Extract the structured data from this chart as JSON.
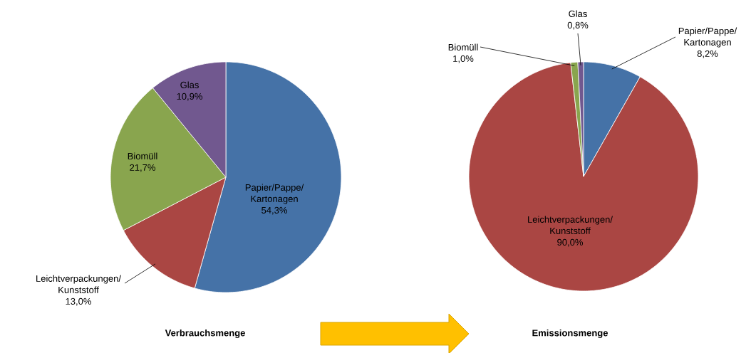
{
  "chart_data": [
    {
      "type": "pie",
      "title": "Verbrauchsmenge",
      "categories": [
        "Papier/Pappe/ Kartonagen",
        "Leichtverpackungen/ Kunststoff",
        "Biomüll",
        "Glas"
      ],
      "values": [
        54.3,
        13.0,
        21.7,
        10.9
      ],
      "value_labels": [
        "54,3%",
        "13,0%",
        "21,7%",
        "10,9%"
      ],
      "colors": [
        "#4572a7",
        "#aa4643",
        "#89a54e",
        "#71588f"
      ]
    },
    {
      "type": "pie",
      "title": "Emissionsmenge",
      "categories": [
        "Papier/Pappe/ Kartonagen",
        "Leichtverpackungen/ Kunststoff",
        "Biomüll",
        "Glas"
      ],
      "values": [
        8.2,
        90.0,
        1.0,
        0.8
      ],
      "value_labels": [
        "8,2%",
        "90,0%",
        "1,0%",
        "0,8%"
      ],
      "colors": [
        "#4572a7",
        "#aa4643",
        "#89a54e",
        "#71588f"
      ]
    }
  ]
}
